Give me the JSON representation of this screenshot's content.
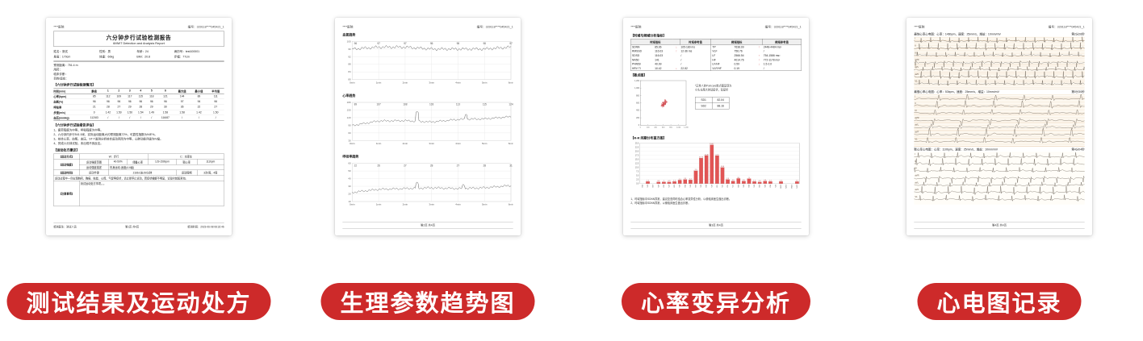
{
  "accent": "#cd2a2a",
  "labels": [
    {
      "text": "测试结果及运动处方"
    },
    {
      "text": "生理参数趋势图"
    },
    {
      "text": "心率变异分析"
    },
    {
      "text": "心电图记录"
    }
  ],
  "doc1": {
    "hospital": "****医院",
    "serial": "编号：320118****045421_1",
    "title": "六分钟步行试验检测报告",
    "subtitle": "6MWT Detection and Analysis Report",
    "info_pairs": [
      {
        "l": "姓名：",
        "v": "测试"
      },
      {
        "l": "性别：",
        "v": "男"
      },
      {
        "l": "年龄：",
        "v": "24"
      },
      {
        "l": "病历号：",
        "v": "test100001"
      },
      {
        "l": "身高：",
        "v": "170cm"
      },
      {
        "l": "体重：",
        "v": "60kg"
      },
      {
        "l": "BMI：",
        "v": "20.8"
      },
      {
        "l": "步幅：",
        "v": "77cm"
      }
    ],
    "pre": [
      "预测距离：751.4 m",
      "用药：",
      "临床诊断：",
      "目的/适应："
    ],
    "sec1": "【六分钟步行试验检测情况】",
    "vitals": {
      "headers": [
        "时间(min)",
        "静息",
        "1",
        "2",
        "3",
        "4",
        "5",
        "6",
        "最大值",
        "最小值",
        "平均值"
      ],
      "rows": [
        [
          "心率(bpm)",
          "85",
          "112",
          "109",
          "117",
          "115",
          "118",
          "121",
          "144",
          "89",
          "111"
        ],
        [
          "血氧(%)",
          "96",
          "96",
          "96",
          "96",
          "96",
          "96",
          "96",
          "97",
          "94",
          "96"
        ],
        [
          "呼吸率",
          "21",
          "28",
          "27",
          "29",
          "28",
          "29",
          "30",
          "36",
          "22",
          "27"
        ],
        [
          "步速(m/s)",
          "0",
          "1.42",
          "1.50",
          "1.50",
          "1.54",
          "1.49",
          "1.58",
          "1.58",
          "1.42",
          "1.50"
        ],
        [
          "血压(mmHg)",
          "112/83",
          "/",
          "/",
          "/",
          "/",
          "/",
          "116/87",
          "/",
          "/",
          "/"
        ]
      ]
    },
    "sec2": "【六分钟步行试验报告评估】",
    "eval": [
      "1、疲劳程度为中等，呼吸程度为中等。",
      "2、六分钟内步行541.5米，实际运动距离大约预测距离72%，可靠性指数为94E%。",
      "3、综合心率、血氧、血压、ST-T监测分析综合运动风险为中等，心肺功能评级为Ⅳ级。",
      "4、完成六分钟试验，未出现不良反应。"
    ],
    "sec3": "【运动处方建议】",
    "rx": {
      "r1l": "【运动方式】",
      "r1a": "W：步行",
      "r1b": "C：功率车",
      "r2l": "【运动强度】",
      "r2a": "运动强度范围",
      "r2b": "40-59%",
      "r2c": "储备心率",
      "r2d": "129-150bpm",
      "r2e": "靶心率",
      "r2f": "111bpm",
      "r3a": "运动强度描述",
      "r3b": "热身运动-适度(4-6级)",
      "r4l": "【运动时间】",
      "r4a": "运动节律",
      "r4b": "2166.0米/30分钟",
      "r4c": "运动周期",
      "r4d": "3次/周，4周",
      "note": "运动过程中一旦出现胸闷、胸痛、眩晕、心慌、气促等症状，请立即停止运动，若症状缓解不明显，请及时就医咨询。",
      "r6l": "【注意事项】",
      "r6v": "测试运动处方事项。。。"
    },
    "footer": {
      "left": "检测医生：测试人员",
      "center": "第1页 共4页",
      "right": "检测时间：2023-06-08 08:32:46"
    }
  },
  "doc2": {
    "hospital": "****医院",
    "serial": "编号：320118****045421_1",
    "footer": "第2页 共4页"
  },
  "doc3": {
    "hospital": "****医院",
    "serial": "编号：320118****045421_1",
    "sec1": "【时域与频域分析指标】",
    "hrv": {
      "headers": [
        [
          "时域指标",
          3
        ],
        [
          "时域参考值",
          1
        ],
        [
          "频域指标",
          3
        ],
        [
          "频域参考值",
          1
        ]
      ],
      "rows": [
        [
          "SDNN",
          "85.06",
          "↓",
          "105-180 ms",
          "TP",
          "7638.09",
          "↑",
          "2448-4484 ms²"
        ],
        [
          "RMSSD",
          "116.03",
          "↑",
          "12-36 ms",
          "VLF",
          "756.76",
          "",
          "/"
        ],
        [
          "SDSD",
          "116.03",
          "",
          "/",
          "LF",
          "2566.54",
          "↑",
          "754-1586 ms²"
        ],
        [
          "NN50",
          "141",
          "",
          "/",
          "HF",
          "4014.76",
          "↑",
          "772-1178 ms²"
        ],
        [
          "PNN50",
          "40.99",
          "",
          "/",
          "LF/HF",
          "0.59",
          "↓",
          "1.5-2.0"
        ],
        [
          "HRV TI",
          "10.42",
          "↓",
          "22-52",
          "VLF/HF",
          "0.19",
          "",
          "/"
        ]
      ]
    },
    "sec2": "【散点图】",
    "scatter_note": [
      "*正常人的Poincare散点图呈现为",
      "小头长尾大的彗星状，彗星状"
    ],
    "sd": {
      "rows": [
        [
          "SD1",
          "82.04"
        ],
        [
          "SD2",
          "88.16"
        ]
      ]
    },
    "sec3": "【R-R 间期分布直方图】",
    "notes": [
      "1、时域指标中SDNN异常，建议复查同时结合心率变异性分析，以便临床医生做出诊断。",
      "2、时域指标中SDNN异常，以便临床医生做出诊断。"
    ],
    "footer": "第3页 共4页"
  },
  "doc4": {
    "hospital": "****医院",
    "serial": "编号：320118****045421_1",
    "strips": [
      {
        "title": "最快心率心电图：心率：146bpm，速度：25mm/s，增益：10mm/mV",
        "time": "第2分26秒",
        "bpm": 146,
        "seed": 1
      },
      {
        "title": "最慢心率心电图：心率：53bpm，速度：25mm/s，增益：10mm/mV",
        "time": "第0分30秒",
        "bpm": 53,
        "seed": 2
      },
      {
        "title": "靶心率心电图：心率：110bpm，速度：25mm/s，增益：10mm/mV",
        "time": "第4分04秒",
        "bpm": 110,
        "seed": 3
      }
    ],
    "footer": "第4页 共4页"
  },
  "chart_data": [
    {
      "type": "line",
      "title": "血氧趋势",
      "x_labels": [
        "0min",
        "1min",
        "2min",
        "3min",
        "4min",
        "5min",
        "6min"
      ],
      "values": [
        96,
        97,
        97,
        96,
        96,
        96,
        97
      ],
      "ylim": [
        80,
        100
      ],
      "yticks": [
        100,
        96,
        92,
        88,
        84,
        80
      ],
      "jitter": 0.5,
      "seed": 1,
      "spikes": []
    },
    {
      "type": "line",
      "title": "心率趋势",
      "x_labels": [
        "0min",
        "1min",
        "2min",
        "3min",
        "4min",
        "5min",
        "6min"
      ],
      "values": [
        89,
        107,
        108,
        103,
        113,
        115,
        124
      ],
      "ylim": [
        30,
        180
      ],
      "yticks": [
        180,
        150,
        120,
        90,
        60,
        30
      ],
      "jitter": 2.5,
      "seed": 2,
      "spikes": [
        {
          "t": 2.45,
          "v": 144
        },
        {
          "t": 4.3,
          "v": 133
        }
      ]
    },
    {
      "type": "line",
      "title": "呼吸率趋势",
      "x_labels": [
        "0min",
        "1min",
        "2min",
        "3min",
        "4min",
        "5min",
        "6min"
      ],
      "values": [
        22,
        26,
        27,
        28,
        27,
        28,
        31
      ],
      "ylim": [
        10,
        60
      ],
      "yticks": [
        60,
        50,
        40,
        30,
        20,
        10
      ],
      "jitter": 0.9,
      "seed": 3,
      "spikes": [
        {
          "t": 2.45,
          "v": 36
        },
        {
          "t": 4.2,
          "v": 33
        }
      ]
    },
    {
      "type": "scatter",
      "title": "散点图",
      "xlim": [
        0,
        1200
      ],
      "ylim": [
        0,
        1200
      ],
      "ticks": [
        0,
        200,
        400,
        600,
        800,
        1000,
        1200
      ],
      "center": [
        620,
        580
      ],
      "sd1": 82.04,
      "sd2": 88.16,
      "n": 115,
      "color": "#d0494e"
    },
    {
      "type": "bar",
      "title": "R-R间期分布直方图",
      "ylim": [
        0,
        25
      ],
      "ytick_step": 2.5,
      "categories": [
        "350",
        "375",
        "400",
        "425",
        "450",
        "475",
        "500",
        "525",
        "550",
        "575",
        "600",
        "625",
        "650",
        "675",
        "700",
        "725",
        "750",
        "775",
        "800",
        "825",
        "850",
        "875",
        "900",
        "925",
        "950",
        "975",
        "1000",
        "1025",
        "1050",
        "1075"
      ],
      "values": [
        0,
        1.2,
        0,
        0.9,
        1.0,
        0.9,
        1.2,
        2.1,
        2.5,
        2.2,
        7.9,
        15.74,
        17.35,
        23.97,
        17.3,
        9.94,
        2.5,
        1.5,
        3.1,
        1.5,
        3.0,
        1.2,
        0.9,
        1.5,
        1.2,
        0,
        1.2,
        0,
        0,
        1.2
      ],
      "color": "#e25555"
    }
  ]
}
